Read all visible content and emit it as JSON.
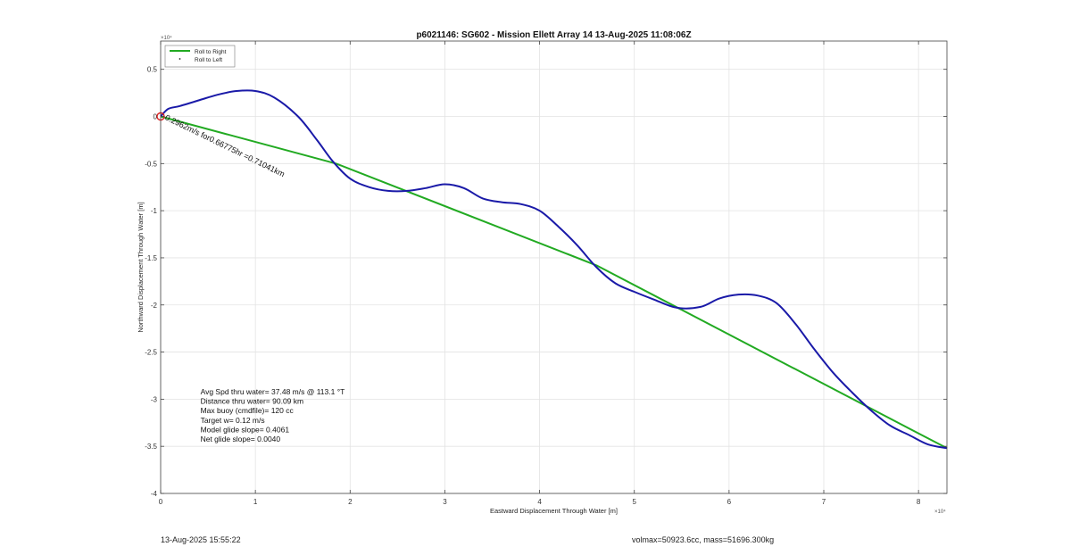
{
  "chart_data": {
    "type": "line",
    "title": "p6021146: SG602 - Mission Ellett Array 14 13-Aug-2025 11:08:06Z",
    "xlabel": "Eastward Displacement Through Water [m]",
    "ylabel": "Northward Displacement Through Water [m]",
    "x_multiplier": "×10⁴",
    "y_multiplier": "×10⁴",
    "xlim": [
      0,
      8.3
    ],
    "ylim": [
      -4,
      0.8
    ],
    "x_ticks": [
      0,
      1,
      2,
      3,
      4,
      5,
      6,
      7,
      8
    ],
    "x_tick_labels": [
      "0",
      "1",
      "2",
      "3",
      "4",
      "5",
      "6",
      "7",
      "8"
    ],
    "y_ticks": [
      0.5,
      0,
      -0.5,
      -1,
      -1.5,
      -2,
      -2.5,
      -3,
      -3.5,
      -4
    ],
    "y_tick_labels": [
      "0.5",
      "0",
      "-0.5",
      "-1",
      "-1.5",
      "-2",
      "-2.5",
      "-3",
      "-3.5",
      "-4"
    ],
    "grid": true,
    "legend": {
      "placement": "top-left",
      "entries": [
        {
          "label": "Roll to Right",
          "color": "#22aa22",
          "marker": "line"
        },
        {
          "label": "Roll to Left",
          "color": "#222222",
          "marker": "dot"
        }
      ]
    },
    "series": [
      {
        "name": "Roll to Right",
        "color": "#22aa22",
        "x": [
          0,
          1.85,
          4.6,
          8.3
        ],
        "y": [
          0,
          -0.5,
          -1.58,
          -3.52
        ]
      },
      {
        "color": "#1a1aa8",
        "x": [
          0,
          0.08,
          0.2,
          0.4,
          0.6,
          0.8,
          1.0,
          1.2,
          1.45,
          1.65,
          1.82,
          2.0,
          2.2,
          2.4,
          2.6,
          2.8,
          3.0,
          3.2,
          3.4,
          3.6,
          3.8,
          4.0,
          4.2,
          4.4,
          4.6,
          4.8,
          5.0,
          5.2,
          5.45,
          5.7,
          5.9,
          6.1,
          6.3,
          6.5,
          6.7,
          6.9,
          7.1,
          7.3,
          7.5,
          7.7,
          7.9,
          8.1,
          8.3
        ],
        "y": [
          0,
          0.08,
          0.11,
          0.17,
          0.23,
          0.27,
          0.27,
          0.2,
          0.0,
          -0.25,
          -0.48,
          -0.66,
          -0.75,
          -0.79,
          -0.79,
          -0.76,
          -0.72,
          -0.76,
          -0.87,
          -0.91,
          -0.93,
          -1.0,
          -1.17,
          -1.37,
          -1.6,
          -1.77,
          -1.86,
          -1.94,
          -2.03,
          -2.02,
          -1.93,
          -1.89,
          -1.9,
          -1.98,
          -2.2,
          -2.47,
          -2.72,
          -2.93,
          -3.12,
          -3.28,
          -3.38,
          -3.48,
          -3.52
        ]
      }
    ],
    "annotations": [
      {
        "text": "0.2962m/s for0.66775hr =0.71041km",
        "x": 0.04,
        "y": -0.03,
        "rotation_deg": 26
      },
      {
        "text": "Avg Spd thru water= 37.48 m/s @ 113.1 °T",
        "x": 0.42,
        "y": -2.95
      },
      {
        "text": "Distance thru water= 90.09 km",
        "x": 0.42,
        "y": -3.05
      },
      {
        "text": "Max buoy (cmdfile)= 120 cc",
        "x": 0.42,
        "y": -3.15
      },
      {
        "text": "Target w= 0.12 m/s",
        "x": 0.42,
        "y": -3.25
      },
      {
        "text": "Model glide slope= 0.4061",
        "x": 0.42,
        "y": -3.35
      },
      {
        "text": "Net glide slope= 0.0040",
        "x": 0.42,
        "y": -3.45
      }
    ],
    "start_marker": {
      "x": 0,
      "y": 0,
      "color": "#dd2222"
    }
  },
  "footer": {
    "left": "13-Aug-2025 15:55:22",
    "right": "volmax=50923.6cc, mass=51696.300kg"
  }
}
